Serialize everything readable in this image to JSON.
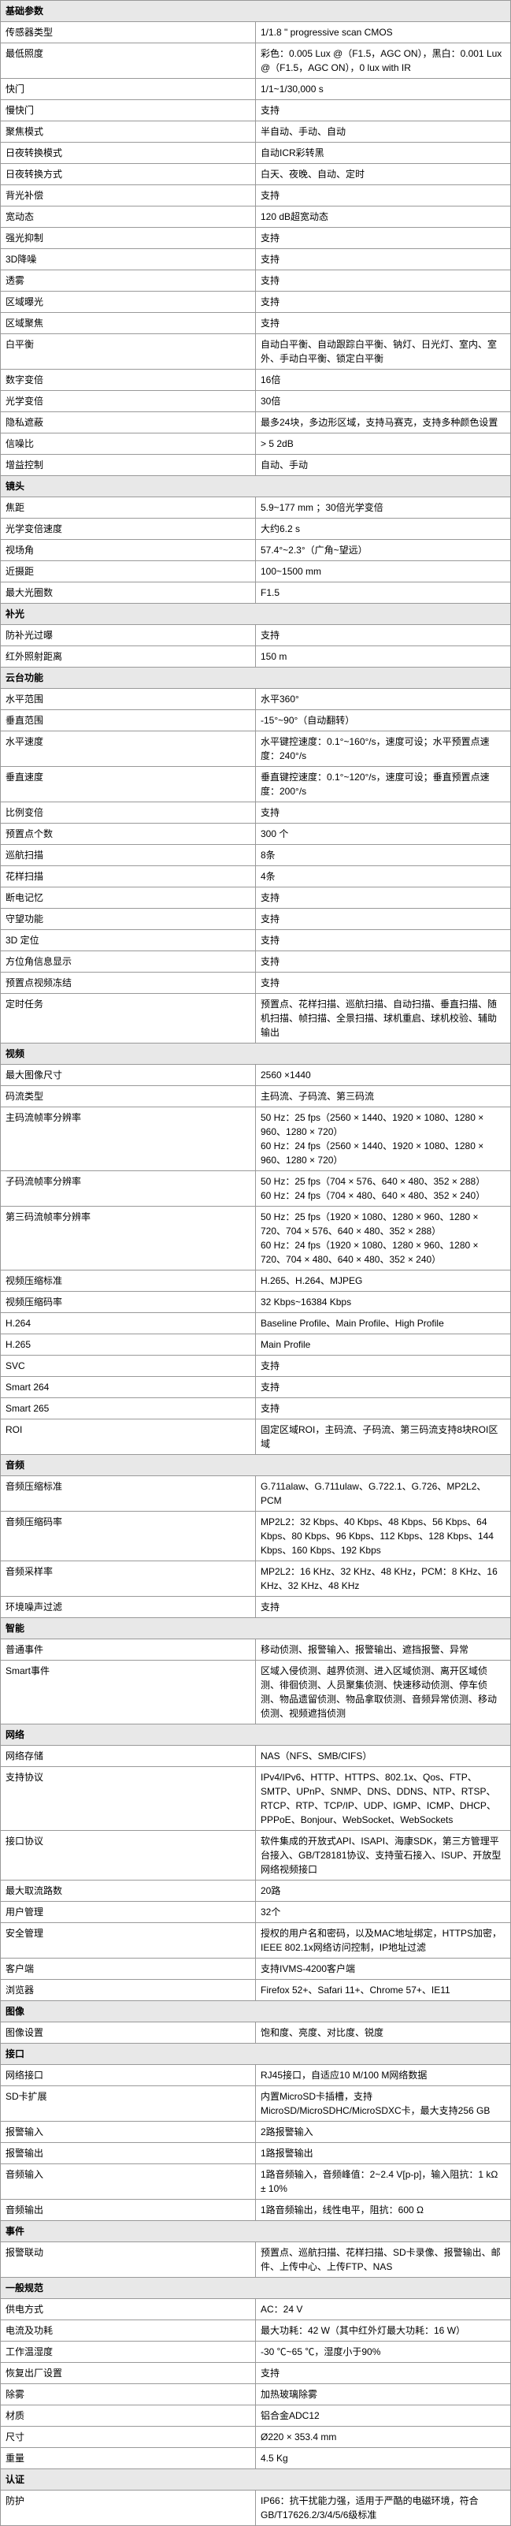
{
  "sections": [
    {
      "title": "基础参数",
      "rows": [
        {
          "label": "传感器类型",
          "value": "1/1.8 \" progressive scan CMOS"
        },
        {
          "label": "最低照度",
          "value": "彩色：0.005 Lux @（F1.5，AGC ON），黑白：0.001 Lux @（F1.5，AGC ON），0 lux with IR"
        },
        {
          "label": "快门",
          "value": "1/1~1/30,000 s"
        },
        {
          "label": "慢快门",
          "value": "支持"
        },
        {
          "label": "聚焦模式",
          "value": "半自动、手动、自动"
        },
        {
          "label": "日夜转换模式",
          "value": "自动ICR彩转黑"
        },
        {
          "label": "日夜转换方式",
          "value": "白天、夜晚、自动、定时"
        },
        {
          "label": "背光补偿",
          "value": "支持"
        },
        {
          "label": "宽动态",
          "value": "120 dB超宽动态"
        },
        {
          "label": "强光抑制",
          "value": "支持"
        },
        {
          "label": "3D降噪",
          "value": "支持"
        },
        {
          "label": "透雾",
          "value": "支持"
        },
        {
          "label": "区域曝光",
          "value": "支持"
        },
        {
          "label": "区域聚焦",
          "value": "支持"
        },
        {
          "label": "白平衡",
          "value": "自动白平衡、自动跟踪白平衡、钠灯、日光灯、室内、室外、手动白平衡、锁定白平衡"
        },
        {
          "label": "数字变倍",
          "value": "16倍"
        },
        {
          "label": "光学变倍",
          "value": "30倍"
        },
        {
          "label": "隐私遮蔽",
          "value": "最多24块，多边形区域，支持马赛克，支持多种颜色设置"
        },
        {
          "label": "信噪比",
          "value": "> 5 2dB"
        },
        {
          "label": "增益控制",
          "value": "自动、手动"
        }
      ]
    },
    {
      "title": "镜头",
      "rows": [
        {
          "label": "焦距",
          "value": "5.9~177 mm  ；30倍光学变倍"
        },
        {
          "label": "光学变倍速度",
          "value": "大约6.2 s"
        },
        {
          "label": "视场角",
          "value": "57.4°~2.3°（广角~望远）"
        },
        {
          "label": "近摄距",
          "value": "100~1500 mm"
        },
        {
          "label": "最大光圈数",
          "value": "F1.5"
        }
      ]
    },
    {
      "title": "补光",
      "rows": [
        {
          "label": "防补光过曝",
          "value": "支持"
        },
        {
          "label": "红外照射距离",
          "value": "150 m"
        }
      ]
    },
    {
      "title": "云台功能",
      "rows": [
        {
          "label": "水平范围",
          "value": "水平360°"
        },
        {
          "label": "垂直范围",
          "value": "-15°~90°（自动翻转）"
        },
        {
          "label": "水平速度",
          "value": "水平键控速度：0.1°~160°/s，速度可设；水平预置点速度：240°/s"
        },
        {
          "label": "垂直速度",
          "value": "垂直键控速度：0.1°~120°/s，速度可设；垂直预置点速度：200°/s"
        },
        {
          "label": "比例变倍",
          "value": "支持"
        },
        {
          "label": "预置点个数",
          "value": "300 个"
        },
        {
          "label": "巡航扫描",
          "value": "8条"
        },
        {
          "label": "花样扫描",
          "value": "4条"
        },
        {
          "label": "断电记忆",
          "value": "支持"
        },
        {
          "label": "守望功能",
          "value": "支持"
        },
        {
          "label": "3D 定位",
          "value": "支持"
        },
        {
          "label": "方位角信息显示",
          "value": "支持"
        },
        {
          "label": "预置点视频冻结",
          "value": "支持"
        },
        {
          "label": "定时任务",
          "value": "预置点、花样扫描、巡航扫描、自动扫描、垂直扫描、随机扫描、帧扫描、全景扫描、球机重启、球机校验、辅助输出"
        }
      ]
    },
    {
      "title": "视频",
      "rows": [
        {
          "label": "最大图像尺寸",
          "value": "2560 ×1440"
        },
        {
          "label": "码流类型",
          "value": "主码流、子码流、第三码流"
        },
        {
          "label": "主码流帧率分辨率",
          "value": "50 Hz：25 fps（2560 × 1440、1920 × 1080、1280 × 960、1280 × 720）\n60 Hz：24 fps（2560 × 1440、1920 × 1080、1280 × 960、1280 × 720）"
        },
        {
          "label": "子码流帧率分辨率",
          "value": "50 Hz：25 fps（704 × 576、640 × 480、352 × 288）\n60 Hz：24 fps（704 × 480、640 × 480、352 × 240）"
        },
        {
          "label": "第三码流帧率分辨率",
          "value": "50 Hz：25 fps（1920 × 1080、1280 × 960、1280 × 720、704 × 576、640 × 480、352 × 288）\n60 Hz：24 fps（1920 × 1080、1280 × 960、1280 × 720、704 × 480、640 × 480、352 × 240）"
        },
        {
          "label": "视频压缩标准",
          "value": "H.265、H.264、MJPEG"
        },
        {
          "label": "视频压缩码率",
          "value": "32 Kbps~16384 Kbps"
        },
        {
          "label": "H.264",
          "value": "Baseline Profile、Main Profile、High Profile"
        },
        {
          "label": "H.265",
          "value": "Main Profile"
        },
        {
          "label": "SVC",
          "value": "支持"
        },
        {
          "label": "Smart 264",
          "value": "支持"
        },
        {
          "label": "Smart 265",
          "value": "支持"
        },
        {
          "label": "ROI",
          "value": "固定区域ROI，主码流、子码流、第三码流支持8块ROI区域"
        }
      ]
    },
    {
      "title": "音频",
      "rows": [
        {
          "label": "音频压缩标准",
          "value": "G.711alaw、G.711ulaw、G.722.1、G.726、MP2L2、PCM"
        },
        {
          "label": "音频压缩码率",
          "value": "MP2L2：32 Kbps、40 Kbps、48 Kbps、56 Kbps、64 Kbps、80 Kbps、96 Kbps、112 Kbps、128 Kbps、144 Kbps、160 Kbps、192 Kbps"
        },
        {
          "label": "音频采样率",
          "value": "MP2L2：16 KHz、32 KHz、48 KHz，PCM：8 KHz、16 KHz、32 KHz、48 KHz"
        },
        {
          "label": "环境噪声过滤",
          "value": "支持"
        }
      ]
    },
    {
      "title": "智能",
      "rows": [
        {
          "label": "普通事件",
          "value": "移动侦测、报警输入、报警输出、遮挡报警、异常"
        },
        {
          "label": "Smart事件",
          "value": "区域入侵侦测、越界侦测、进入区域侦测、离开区域侦测、徘徊侦测、人员聚集侦测、快速移动侦测、停车侦测、物品遗留侦测、物品拿取侦测、音频异常侦测、移动侦测、视频遮挡侦测"
        }
      ]
    },
    {
      "title": "网络",
      "rows": [
        {
          "label": "网络存储",
          "value": "NAS（NFS、SMB/CIFS）"
        },
        {
          "label": "支持协议",
          "value": "IPv4/IPv6、HTTP、HTTPS、802.1x、Qos、FTP、SMTP、UPnP、SNMP、DNS、DDNS、NTP、RTSP、RTCP、RTP、TCP/IP、UDP、IGMP、ICMP、DHCP、PPPoE、Bonjour、WebSocket、WebSockets"
        },
        {
          "label": "接口协议",
          "value": "软件集成的开放式API、ISAPI、海康SDK，第三方管理平台接入、GB/T28181协议、支持萤石接入、ISUP、开放型网络视频接口"
        },
        {
          "label": "最大取流路数",
          "value": "20路"
        },
        {
          "label": "用户管理",
          "value": "32个"
        },
        {
          "label": "安全管理",
          "value": "授权的用户名和密码，以及MAC地址绑定，HTTPS加密，IEEE 802.1x网络访问控制，IP地址过滤"
        },
        {
          "label": "客户端",
          "value": "支持IVMS-4200客户端"
        },
        {
          "label": "浏览器",
          "value": "Firefox 52+、Safari 11+、Chrome 57+、IE11"
        }
      ]
    },
    {
      "title": "图像",
      "rows": [
        {
          "label": "图像设置",
          "value": "饱和度、亮度、对比度、锐度"
        }
      ]
    },
    {
      "title": "接口",
      "rows": [
        {
          "label": "网络接口",
          "value": "RJ45接口，自适应10 M/100 M网络数据"
        },
        {
          "label": "SD卡扩展",
          "value": "内置MicroSD卡插槽，支持MicroSD/MicroSDHC/MicroSDXC卡，最大支持256 GB"
        },
        {
          "label": "报警输入",
          "value": "2路报警输入"
        },
        {
          "label": "报警输出",
          "value": "1路报警输出"
        },
        {
          "label": "音频输入",
          "value": "1路音频输入，音频峰值：2~2.4 V[p-p]，输入阻抗：1 kΩ ± 10%"
        },
        {
          "label": "音频输出",
          "value": "1路音频输出，线性电平，阻抗：600 Ω"
        }
      ]
    },
    {
      "title": "事件",
      "rows": [
        {
          "label": "报警联动",
          "value": "预置点、巡航扫描、花样扫描、SD卡录像、报警输出、邮件、上传中心、上传FTP、NAS"
        }
      ]
    },
    {
      "title": "一般规范",
      "rows": [
        {
          "label": "供电方式",
          "value": "AC：24 V"
        },
        {
          "label": "电流及功耗",
          "value": "最大功耗：42 W（其中红外灯最大功耗：16 W）"
        },
        {
          "label": "工作温湿度",
          "value": "-30 ℃~65 ℃，湿度小于90%"
        },
        {
          "label": "恢复出厂设置",
          "value": "支持"
        },
        {
          "label": "除雾",
          "value": "加热玻璃除雾"
        },
        {
          "label": "材质",
          "value": "铝合金ADC12"
        },
        {
          "label": "尺寸",
          "value": "Ø220 × 353.4 mm"
        },
        {
          "label": "重量",
          "value": "4.5 Kg"
        }
      ]
    },
    {
      "title": "认证",
      "rows": [
        {
          "label": "防护",
          "value": "IP66：抗干扰能力强，适用于严酷的电磁环境，符合GB/T17626.2/3/4/5/6级标准"
        }
      ]
    }
  ]
}
